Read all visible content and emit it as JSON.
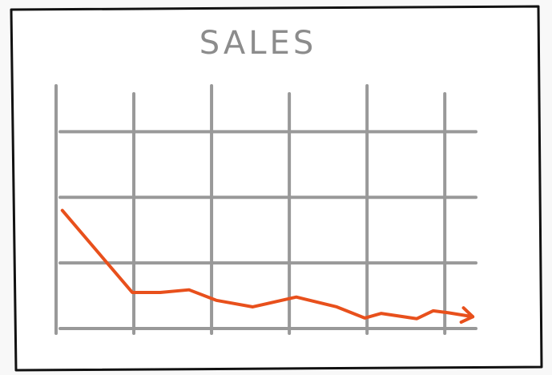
{
  "chart_data": {
    "type": "line",
    "title": "SALES",
    "x": [
      0.08,
      0.98,
      1.34,
      1.71,
      2.06,
      2.53,
      3.09,
      3.61,
      3.97,
      4.18,
      4.64,
      4.85,
      5.05,
      5.36
    ],
    "series": [
      {
        "name": "Sales",
        "color": "#e8501c",
        "values": [
          1.8,
          0.55,
          0.55,
          0.59,
          0.43,
          0.33,
          0.48,
          0.33,
          0.16,
          0.23,
          0.15,
          0.27,
          0.24,
          0.18
        ]
      }
    ],
    "xlim": [
      0,
      5.4
    ],
    "ylim": [
      0,
      3.7
    ],
    "xticks": [
      0,
      1,
      2,
      3,
      4,
      5
    ],
    "yticks": [
      0,
      1,
      2,
      3
    ],
    "grid": true,
    "grid_color": "#999999"
  }
}
